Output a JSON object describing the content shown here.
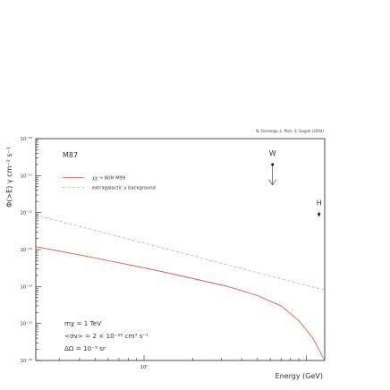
{
  "chart_data": {
    "type": "line",
    "title": "",
    "credit": "N. Fornengo, L. Pieri, S. Scopel (2004)",
    "panel_label": "M87",
    "xlabel": "Energy (GeV)",
    "ylabel": "Φ(>E) γ cm⁻² s⁻¹",
    "x_scale": "log",
    "y_scale": "log",
    "xlim": [
      21.5,
      1300
    ],
    "ylim": [
      1e-16,
      1e-10
    ],
    "x_tick_labels": [
      {
        "value": 100,
        "label": "10²"
      }
    ],
    "y_tick_labels": [
      {
        "value": 1e-10,
        "label": "10⁻¹⁰"
      },
      {
        "value": 1e-11,
        "label": "10⁻¹¹"
      },
      {
        "value": 1e-12,
        "label": "10⁻¹²"
      },
      {
        "value": 1e-13,
        "label": "10⁻¹³"
      },
      {
        "value": 1e-14,
        "label": "10⁻¹⁴"
      },
      {
        "value": 1e-15,
        "label": "10⁻¹⁵"
      },
      {
        "value": 1e-16,
        "label": "10⁻¹⁶"
      }
    ],
    "grid": false,
    "legend_position": "upper-left",
    "series": [
      {
        "name": "χχ → W/H M99",
        "color": "#e04848",
        "style": "solid",
        "x": [
          21.5,
          30,
          45,
          70,
          100,
          150,
          220,
          330,
          500,
          700,
          900,
          1100,
          1300
        ],
        "y": [
          1.2e-13,
          9.1e-14,
          6.5e-14,
          4.4e-14,
          3.2e-14,
          2.2e-14,
          1.5e-14,
          1e-14,
          5.7e-15,
          3e-15,
          1.2e-15,
          4e-16,
          1e-16
        ]
      },
      {
        "name": "extragalactic γ background",
        "color": "#8899dd",
        "style": "dash-dot",
        "x": [
          21.5,
          1300
        ],
        "y": [
          8.6e-13,
          8e-15
        ]
      }
    ],
    "points": [
      {
        "label": "W",
        "x": 620,
        "y": 2e-11,
        "upper_limit": true
      },
      {
        "label": "H",
        "x": 1200,
        "y": 9e-13,
        "upper_limit": false
      }
    ],
    "annotations": [
      "mχ = 1 TeV",
      "<σv> = 2 × 10⁻²⁶ cm³ s⁻¹",
      "ΔΩ = 10⁻⁵ sr"
    ]
  }
}
